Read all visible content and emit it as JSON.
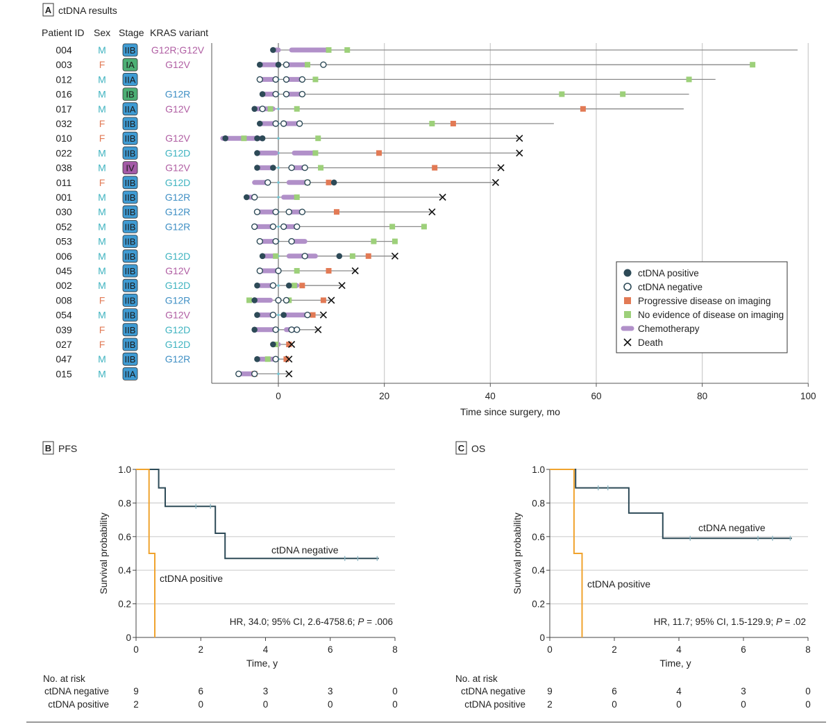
{
  "colors": {
    "positive": "#2d4a57",
    "progressive": "#e27a55",
    "ned": "#9dd07a",
    "chemo": "#b190c9",
    "grid": "#cfcfcf",
    "male": "#3fb3c0",
    "female": "#e27a55",
    "kras_purple": "#b05ea3",
    "kras_blue": "#3f8fc4",
    "kras_teal": "#3fb3c0",
    "stage_blue": "#3f9bd3",
    "stage_green": "#4caf74",
    "stage_purple": "#a35aa6",
    "km_negative": "#2d4a57",
    "km_positive": "#f0a32e"
  },
  "panel_a": {
    "letter": "A",
    "title": "ctDNA results",
    "headers": {
      "patient_id": "Patient ID",
      "sex": "Sex",
      "stage": "Stage",
      "kras": "KRAS variant"
    },
    "xlabel": "Time since surgery, mo",
    "legend": {
      "positive": "ctDNA positive",
      "negative": "ctDNA negative",
      "progressive": "Progressive disease on imaging",
      "ned": "No evidence of disease on imaging",
      "chemo": "Chemotherapy",
      "death": "Death"
    }
  },
  "chart_data": [
    {
      "type": "swimmer",
      "title": "ctDNA results",
      "xlabel": "Time since surgery, mo",
      "xlim": [
        -12,
        100
      ],
      "xticks": [
        0,
        20,
        40,
        60,
        80,
        100
      ],
      "patients": [
        {
          "id": "004",
          "sex": "M",
          "stage": "IIB",
          "kras": "G12R;G12V",
          "start": -1,
          "end": 98,
          "death": false,
          "chemo": [
            [
              -0.5,
              0
            ],
            [
              2.5,
              9.5
            ]
          ],
          "pos": [
            -1
          ],
          "neg": [],
          "prog": [],
          "ned": [
            9.5,
            13
          ]
        },
        {
          "id": "003",
          "sex": "F",
          "stage": "IA",
          "kras": "G12V",
          "start": -3.5,
          "end": 89.5,
          "death": false,
          "chemo": [
            [
              -3.5,
              0
            ],
            [
              1.5,
              5
            ]
          ],
          "pos": [
            -3.5,
            0
          ],
          "neg": [
            1.5,
            8.5
          ],
          "prog": [],
          "ned": [
            5.5,
            89.5
          ]
        },
        {
          "id": "012",
          "sex": "M",
          "stage": "IIA",
          "kras": "",
          "start": -3.5,
          "end": 82.5,
          "death": false,
          "chemo": [
            [
              -3.5,
              -1
            ],
            [
              1.5,
              4.5
            ]
          ],
          "pos": [],
          "neg": [
            -3.5,
            -0.5,
            1.5,
            4.5
          ],
          "prog": [],
          "ned": [
            7,
            77.5
          ]
        },
        {
          "id": "016",
          "sex": "M",
          "stage": "IB",
          "kras": "G12R",
          "start": -3,
          "end": 77.5,
          "death": false,
          "chemo": [
            [
              -3,
              -0.5
            ],
            [
              1.5,
              4.5
            ]
          ],
          "pos": [
            -3
          ],
          "neg": [
            -0.5,
            1.5,
            4.5
          ],
          "prog": [],
          "ned": [
            53.5,
            65
          ]
        },
        {
          "id": "017",
          "sex": "M",
          "stage": "IIA",
          "kras": "G12V",
          "start": -4.5,
          "end": 76.5,
          "death": false,
          "chemo": [
            [
              -4.5,
              -1
            ]
          ],
          "pos": [
            -4.5
          ],
          "neg": [
            -3
          ],
          "prog": [
            57.5
          ],
          "ned": [
            -1.5,
            3.5
          ]
        },
        {
          "id": "032",
          "sex": "F",
          "stage": "IIB",
          "kras": "",
          "start": -3.5,
          "end": 52,
          "death": false,
          "chemo": [
            [
              -3.5,
              -1
            ],
            [
              1,
              4
            ]
          ],
          "pos": [
            -3.5
          ],
          "neg": [
            -0.5,
            1,
            4
          ],
          "prog": [
            33
          ],
          "ned": [
            29
          ]
        },
        {
          "id": "010",
          "sex": "F",
          "stage": "IIB",
          "kras": "G12V",
          "start": -10.5,
          "end": 45.5,
          "death": true,
          "chemo": [
            [
              -10.5,
              -3
            ]
          ],
          "pos": [
            -10,
            -4,
            -3
          ],
          "neg": [],
          "prog": [],
          "ned": [
            -6.5,
            7.5
          ]
        },
        {
          "id": "022",
          "sex": "M",
          "stage": "IIB",
          "kras": "G12D",
          "start": -4,
          "end": 45.5,
          "death": true,
          "chemo": [
            [
              -4,
              -0.5
            ],
            [
              3,
              7
            ]
          ],
          "pos": [
            -4
          ],
          "neg": [],
          "prog": [
            19
          ],
          "ned": [
            7
          ]
        },
        {
          "id": "038",
          "sex": "M",
          "stage": "IV",
          "kras": "G12V",
          "start": -4,
          "end": 42,
          "death": true,
          "chemo": [
            [
              -4,
              -1
            ],
            [
              3,
              5
            ]
          ],
          "pos": [
            -4,
            -1
          ],
          "neg": [
            2.5,
            5
          ],
          "prog": [
            29.5
          ],
          "ned": [
            8
          ]
        },
        {
          "id": "011",
          "sex": "F",
          "stage": "IIB",
          "kras": "G12D",
          "start": -4.5,
          "end": 41,
          "death": true,
          "chemo": [
            [
              -4.5,
              -2
            ],
            [
              2,
              5.5
            ]
          ],
          "pos": [
            10.5
          ],
          "neg": [
            -2,
            5.5
          ],
          "prog": [
            9.5
          ],
          "ned": [
            5.5
          ]
        },
        {
          "id": "001",
          "sex": "M",
          "stage": "IIB",
          "kras": "G12R",
          "start": -6,
          "end": 31,
          "death": true,
          "chemo": [
            [
              -6,
              -4.5
            ],
            [
              1,
              3.5
            ]
          ],
          "pos": [
            -6
          ],
          "neg": [
            -4.5
          ],
          "prog": [],
          "ned": [
            3.5
          ]
        },
        {
          "id": "030",
          "sex": "M",
          "stage": "IIB",
          "kras": "G12R",
          "start": -4,
          "end": 29,
          "death": true,
          "chemo": [
            [
              -4,
              -0.5
            ],
            [
              2,
              4.5
            ]
          ],
          "pos": [],
          "neg": [
            -4,
            -0.5,
            2,
            4.5
          ],
          "prog": [
            11
          ],
          "ned": []
        },
        {
          "id": "052",
          "sex": "M",
          "stage": "IIB",
          "kras": "G12R",
          "start": -4.5,
          "end": 27.5,
          "death": false,
          "chemo": [
            [
              -4.5,
              -1
            ],
            [
              1,
              3.5
            ]
          ],
          "pos": [],
          "neg": [
            -4.5,
            -1,
            1,
            3.5
          ],
          "prog": [],
          "ned": [
            21.5,
            27.5
          ]
        },
        {
          "id": "053",
          "sex": "M",
          "stage": "IIB",
          "kras": "",
          "start": -3.5,
          "end": 22,
          "death": false,
          "chemo": [
            [
              -3.5,
              -0.5
            ],
            [
              2.5,
              5
            ]
          ],
          "pos": [],
          "neg": [
            -3.5,
            -0.5,
            2.5
          ],
          "prog": [],
          "ned": [
            18,
            22
          ]
        },
        {
          "id": "006",
          "sex": "M",
          "stage": "IIB",
          "kras": "G12D",
          "start": -3,
          "end": 22,
          "death": true,
          "chemo": [
            [
              -3,
              -1
            ],
            [
              2,
              7
            ]
          ],
          "pos": [
            -3,
            11.5
          ],
          "neg": [
            5
          ],
          "prog": [
            17
          ],
          "ned": [
            -0.5,
            14
          ]
        },
        {
          "id": "045",
          "sex": "M",
          "stage": "IIB",
          "kras": "G12V",
          "start": -3.5,
          "end": 14.5,
          "death": true,
          "chemo": [
            [
              -3.5,
              -0.5
            ]
          ],
          "pos": [],
          "neg": [
            -3.5,
            0
          ],
          "prog": [
            9.5
          ],
          "ned": [
            3.5
          ]
        },
        {
          "id": "002",
          "sex": "M",
          "stage": "IIB",
          "kras": "G12D",
          "start": -4,
          "end": 12,
          "death": true,
          "chemo": [
            [
              -4,
              -1
            ],
            [
              2,
              3.5
            ]
          ],
          "pos": [
            -4,
            2
          ],
          "neg": [
            -1
          ],
          "prog": [
            4.5
          ],
          "ned": [
            3
          ]
        },
        {
          "id": "008",
          "sex": "F",
          "stage": "IIB",
          "kras": "G12R",
          "start": -5.5,
          "end": 10,
          "death": true,
          "chemo": [
            [
              -4.5,
              -1.5
            ]
          ],
          "pos": [
            -4.5
          ],
          "neg": [
            0,
            1.5
          ],
          "prog": [
            8.5
          ],
          "ned": [
            -5.5,
            2
          ]
        },
        {
          "id": "054",
          "sex": "M",
          "stage": "IIB",
          "kras": "G12V",
          "start": -4,
          "end": 8.5,
          "death": true,
          "chemo": [
            [
              -4,
              -1
            ],
            [
              1,
              5.5
            ]
          ],
          "pos": [
            -4,
            1
          ],
          "neg": [
            -1,
            5.5
          ],
          "prog": [
            6.5
          ],
          "ned": []
        },
        {
          "id": "039",
          "sex": "F",
          "stage": "IIB",
          "kras": "G12D",
          "start": -4.5,
          "end": 7.5,
          "death": true,
          "chemo": [
            [
              -4.5,
              -0.5
            ],
            [
              1.5,
              3.5
            ]
          ],
          "pos": [
            -4.5
          ],
          "neg": [
            -0.5,
            2.5,
            3.5
          ],
          "prog": [],
          "ned": []
        },
        {
          "id": "027",
          "sex": "F",
          "stage": "IIB",
          "kras": "G12D",
          "start": -1,
          "end": 2.5,
          "death": true,
          "chemo": [
            [
              -1,
              0
            ]
          ],
          "pos": [
            -1
          ],
          "neg": [],
          "prog": [
            2
          ],
          "ned": [
            -0.5
          ]
        },
        {
          "id": "047",
          "sex": "M",
          "stage": "IIB",
          "kras": "G12R",
          "start": -4,
          "end": 2,
          "death": true,
          "chemo": [
            [
              -4,
              -1
            ]
          ],
          "pos": [
            -4
          ],
          "neg": [
            -0.5
          ],
          "prog": [
            1.5
          ],
          "ned": [
            -2
          ]
        },
        {
          "id": "015",
          "sex": "M",
          "stage": "IIA",
          "kras": "",
          "start": -7.5,
          "end": 2,
          "death": true,
          "chemo": [
            [
              -7.5,
              -4.5
            ]
          ],
          "pos": [],
          "neg": [
            -7.5,
            -4.5
          ],
          "prog": [
            -4.5
          ],
          "ned": []
        }
      ]
    },
    {
      "type": "line",
      "panel": "B",
      "title": "PFS",
      "xlabel": "Time, y",
      "ylabel": "Survival probability",
      "xlim": [
        0,
        8
      ],
      "ylim": [
        0,
        1
      ],
      "xticks": [
        0,
        2,
        4,
        6,
        8
      ],
      "yticks": [
        "0",
        "0.2",
        "0.4",
        "0.6",
        "0.8",
        "1.0"
      ],
      "series": [
        {
          "name": "ctDNA negative",
          "x": [
            0,
            0.7,
            0.7,
            0.9,
            0.9,
            2.45,
            2.45,
            2.75,
            2.75,
            7.5
          ],
          "y": [
            1.0,
            1.0,
            0.89,
            0.89,
            0.78,
            0.78,
            0.62,
            0.62,
            0.47,
            0.47
          ],
          "censored": [
            [
              1.85,
              0.78
            ],
            [
              2.3,
              0.78
            ],
            [
              6.45,
              0.47
            ],
            [
              6.85,
              0.47
            ],
            [
              7.45,
              0.47
            ]
          ]
        },
        {
          "name": "ctDNA positive",
          "x": [
            0,
            0.4,
            0.4,
            0.58,
            0.58
          ],
          "y": [
            1.0,
            1.0,
            0.5,
            0.5,
            0
          ],
          "censored": []
        }
      ],
      "annotation": "HR, 34.0; 95% CI, 2.6-4758.6;",
      "p_label": "P",
      "p_value": "= .006",
      "risk_title": "No. at risk",
      "risk": [
        {
          "label": "ctDNA negative",
          "values": [
            "9",
            "6",
            "3",
            "3",
            "0"
          ]
        },
        {
          "label": "ctDNA positive",
          "values": [
            "2",
            "0",
            "0",
            "0",
            "0"
          ]
        }
      ]
    },
    {
      "type": "line",
      "panel": "C",
      "title": "OS",
      "xlabel": "Time, y",
      "ylabel": "Survival probability",
      "xlim": [
        0,
        8
      ],
      "ylim": [
        0,
        1
      ],
      "xticks": [
        0,
        2,
        4,
        6,
        8
      ],
      "yticks": [
        "0",
        "0.2",
        "0.4",
        "0.6",
        "0.8",
        "1.0"
      ],
      "series": [
        {
          "name": "ctDNA negative",
          "x": [
            0,
            0.8,
            0.8,
            2.45,
            2.45,
            3.5,
            3.5,
            7.5
          ],
          "y": [
            1.0,
            1.0,
            0.89,
            0.89,
            0.74,
            0.74,
            0.59,
            0.59
          ],
          "censored": [
            [
              1.5,
              0.89
            ],
            [
              1.8,
              0.89
            ],
            [
              4.35,
              0.59
            ],
            [
              6.45,
              0.59
            ],
            [
              6.9,
              0.59
            ],
            [
              7.45,
              0.59
            ]
          ]
        },
        {
          "name": "ctDNA positive",
          "x": [
            0,
            0.75,
            0.75,
            1.0,
            1.0
          ],
          "y": [
            1.0,
            1.0,
            0.5,
            0.5,
            0
          ],
          "censored": []
        }
      ],
      "annotation": "HR, 11.7; 95% CI, 1.5-129.9;",
      "p_label": "P",
      "p_value": "= .02",
      "risk_title": "No. at risk",
      "risk": [
        {
          "label": "ctDNA negative",
          "values": [
            "9",
            "6",
            "4",
            "3",
            "0"
          ]
        },
        {
          "label": "ctDNA positive",
          "values": [
            "2",
            "0",
            "0",
            "0",
            "0"
          ]
        }
      ]
    }
  ]
}
